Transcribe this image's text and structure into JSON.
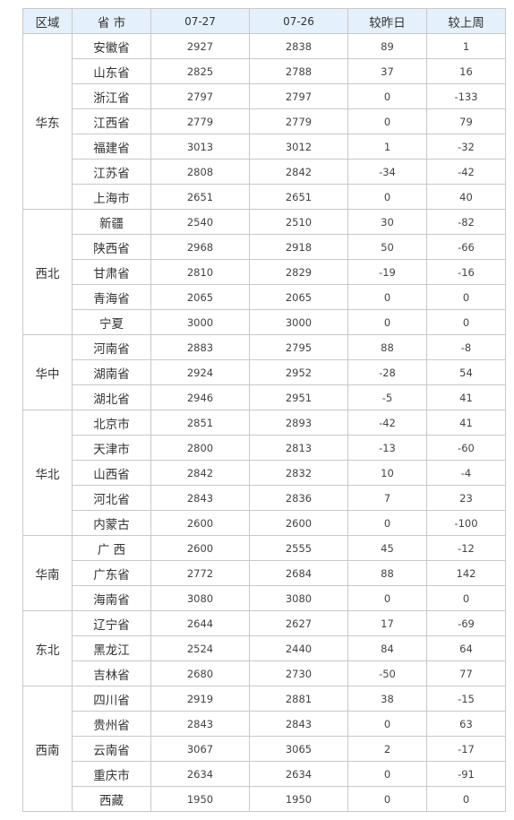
{
  "header": {
    "region": "区域",
    "province": "省 市",
    "date1": "07-27",
    "date2": "07-26",
    "vs_yesterday": "较昨日",
    "vs_last_week": "较上周"
  },
  "colors": {
    "up": "#d21a1a",
    "down": "#1c8a1c",
    "header_bg": "#e4f0fb"
  },
  "groups": [
    {
      "region": "华东",
      "rows": [
        {
          "province": "安徽省",
          "d1": "2927",
          "d2": "2838",
          "dd": "89",
          "dw": "1"
        },
        {
          "province": "山东省",
          "d1": "2825",
          "d2": "2788",
          "dd": "37",
          "dw": "16"
        },
        {
          "province": "浙江省",
          "d1": "2797",
          "d2": "2797",
          "dd": "0",
          "dw": "-133"
        },
        {
          "province": "江西省",
          "d1": "2779",
          "d2": "2779",
          "dd": "0",
          "dw": "79"
        },
        {
          "province": "福建省",
          "d1": "3013",
          "d2": "3012",
          "dd": "1",
          "dw": "-32"
        },
        {
          "province": "江苏省",
          "d1": "2808",
          "d2": "2842",
          "dd": "-34",
          "dw": "-42"
        },
        {
          "province": "上海市",
          "d1": "2651",
          "d2": "2651",
          "dd": "0",
          "dw": "40"
        }
      ]
    },
    {
      "region": "西北",
      "rows": [
        {
          "province": "新疆",
          "d1": "2540",
          "d2": "2510",
          "dd": "30",
          "dw": "-82"
        },
        {
          "province": "陕西省",
          "d1": "2968",
          "d2": "2918",
          "dd": "50",
          "dw": "-66"
        },
        {
          "province": "甘肃省",
          "d1": "2810",
          "d2": "2829",
          "dd": "-19",
          "dw": "-16"
        },
        {
          "province": "青海省",
          "d1": "2065",
          "d2": "2065",
          "dd": "0",
          "dw": "0"
        },
        {
          "province": "宁夏",
          "d1": "3000",
          "d2": "3000",
          "dd": "0",
          "dw": "0"
        }
      ]
    },
    {
      "region": "华中",
      "rows": [
        {
          "province": "河南省",
          "d1": "2883",
          "d2": "2795",
          "dd": "88",
          "dw": "-8"
        },
        {
          "province": "湖南省",
          "d1": "2924",
          "d2": "2952",
          "dd": "-28",
          "dw": "54"
        },
        {
          "province": "湖北省",
          "d1": "2946",
          "d2": "2951",
          "dd": "-5",
          "dw": "41"
        }
      ]
    },
    {
      "region": "华北",
      "rows": [
        {
          "province": "北京市",
          "d1": "2851",
          "d2": "2893",
          "dd": "-42",
          "dw": "41"
        },
        {
          "province": "天津市",
          "d1": "2800",
          "d2": "2813",
          "dd": "-13",
          "dw": "-60"
        },
        {
          "province": "山西省",
          "d1": "2842",
          "d2": "2832",
          "dd": "10",
          "dw": "-4"
        },
        {
          "province": "河北省",
          "d1": "2843",
          "d2": "2836",
          "dd": "7",
          "dw": "23"
        },
        {
          "province": "内蒙古",
          "d1": "2600",
          "d2": "2600",
          "dd": "0",
          "dw": "-100"
        }
      ]
    },
    {
      "region": "华南",
      "rows": [
        {
          "province": "广 西",
          "d1": "2600",
          "d2": "2555",
          "dd": "45",
          "dw": "-12"
        },
        {
          "province": "广东省",
          "d1": "2772",
          "d2": "2684",
          "dd": "88",
          "dw": "142"
        },
        {
          "province": "海南省",
          "d1": "3080",
          "d2": "3080",
          "dd": "0",
          "dw": "0"
        }
      ]
    },
    {
      "region": "东北",
      "rows": [
        {
          "province": "辽宁省",
          "d1": "2644",
          "d2": "2627",
          "dd": "17",
          "dw": "-69"
        },
        {
          "province": "黑龙江",
          "d1": "2524",
          "d2": "2440",
          "dd": "84",
          "dw": "64"
        },
        {
          "province": "吉林省",
          "d1": "2680",
          "d2": "2730",
          "dd": "-50",
          "dw": "77"
        }
      ]
    },
    {
      "region": "西南",
      "rows": [
        {
          "province": "四川省",
          "d1": "2919",
          "d2": "2881",
          "dd": "38",
          "dw": "-15"
        },
        {
          "province": "贵州省",
          "d1": "2843",
          "d2": "2843",
          "dd": "0",
          "dw": "63"
        },
        {
          "province": "云南省",
          "d1": "3067",
          "d2": "3065",
          "dd": "2",
          "dw": "-17"
        },
        {
          "province": "重庆市",
          "d1": "2634",
          "d2": "2634",
          "dd": "0",
          "dw": "-91"
        },
        {
          "province": "西藏",
          "d1": "1950",
          "d2": "1950",
          "dd": "0",
          "dw": "0"
        }
      ]
    }
  ]
}
